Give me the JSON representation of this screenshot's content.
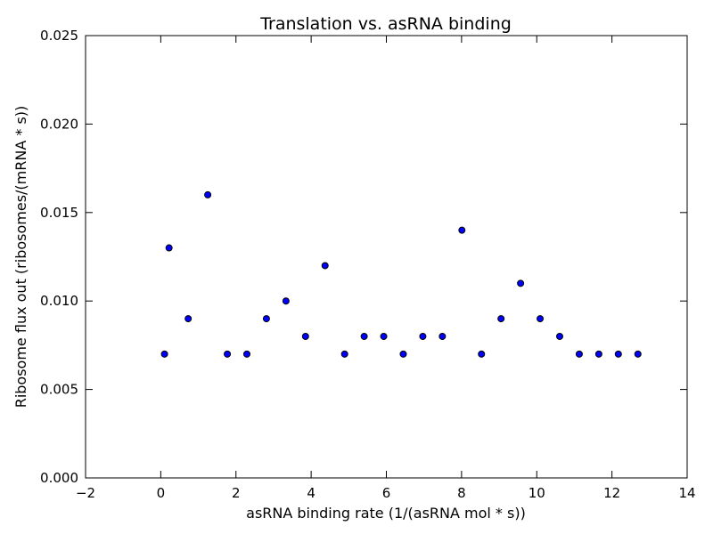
{
  "chart_data": {
    "type": "scatter",
    "title": "Translation vs. asRNA binding",
    "xlabel": "asRNA binding rate (1/(asRNA mol * s))",
    "ylabel": "Ribosome flux out (ribosomes/(mRNA * s))",
    "xlim": [
      -2,
      14
    ],
    "ylim": [
      0.0,
      0.025
    ],
    "xticks": [
      "−2",
      "0",
      "2",
      "4",
      "6",
      "8",
      "10",
      "12",
      "14"
    ],
    "xtick_values": [
      -2,
      0,
      2,
      4,
      6,
      8,
      10,
      12,
      14
    ],
    "yticks": [
      "0.000",
      "0.005",
      "0.010",
      "0.015",
      "0.020",
      "0.025"
    ],
    "ytick_values": [
      0.0,
      0.005,
      0.01,
      0.015,
      0.02,
      0.025
    ],
    "grid": false,
    "marker_color": "#0000ff",
    "marker_edge": "#000000",
    "points": [
      {
        "x": 0.1,
        "y": 0.007
      },
      {
        "x": 0.22,
        "y": 0.013
      },
      {
        "x": 0.73,
        "y": 0.009
      },
      {
        "x": 1.25,
        "y": 0.016
      },
      {
        "x": 1.77,
        "y": 0.007
      },
      {
        "x": 2.29,
        "y": 0.007
      },
      {
        "x": 2.81,
        "y": 0.009
      },
      {
        "x": 3.33,
        "y": 0.01
      },
      {
        "x": 3.85,
        "y": 0.008
      },
      {
        "x": 4.37,
        "y": 0.012
      },
      {
        "x": 4.89,
        "y": 0.007
      },
      {
        "x": 5.41,
        "y": 0.008
      },
      {
        "x": 5.93,
        "y": 0.008
      },
      {
        "x": 6.45,
        "y": 0.007
      },
      {
        "x": 6.97,
        "y": 0.008
      },
      {
        "x": 7.49,
        "y": 0.008
      },
      {
        "x": 8.01,
        "y": 0.014
      },
      {
        "x": 8.53,
        "y": 0.007
      },
      {
        "x": 9.05,
        "y": 0.009
      },
      {
        "x": 9.57,
        "y": 0.011
      },
      {
        "x": 10.09,
        "y": 0.009
      },
      {
        "x": 10.61,
        "y": 0.008
      },
      {
        "x": 11.13,
        "y": 0.007
      },
      {
        "x": 11.65,
        "y": 0.007
      },
      {
        "x": 12.17,
        "y": 0.007
      },
      {
        "x": 12.69,
        "y": 0.007
      }
    ]
  }
}
